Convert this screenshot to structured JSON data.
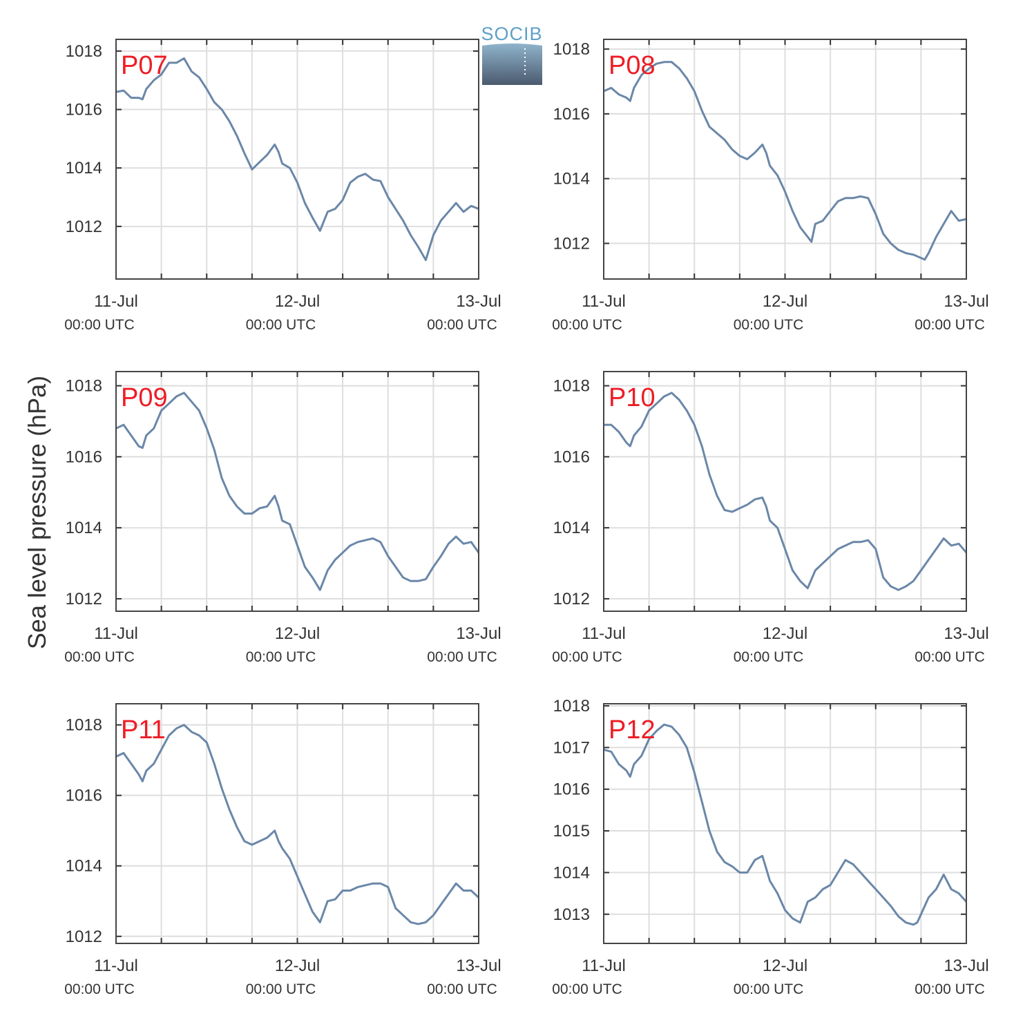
{
  "figure": {
    "ylabel": "Sea level pressure (hPa)",
    "logo_text": "SOCIB",
    "x_tick_labels": [
      {
        "date": "11-Jul",
        "time": "00:00 UTC",
        "hour": 0
      },
      {
        "date": "12-Jul",
        "time": "00:00 UTC",
        "hour": 24
      },
      {
        "date": "13-Jul",
        "time": "00:00 UTC",
        "hour": 48
      }
    ],
    "line_color": "#6a87a8",
    "station_color": "#ee1c25"
  },
  "chart_data": [
    {
      "type": "line",
      "station": "P07",
      "xlim": [
        0,
        48
      ],
      "ylim": [
        1010.2,
        1018.4
      ],
      "yticks": [
        1012,
        1014,
        1016,
        1018
      ],
      "x": [
        0,
        1,
        2,
        3,
        3.5,
        4,
        5,
        6,
        7,
        8,
        9,
        10,
        11,
        12,
        13,
        14,
        15,
        16,
        17,
        18,
        19,
        20,
        21,
        21.5,
        22,
        23,
        24,
        25,
        26,
        27,
        28,
        29,
        30,
        31,
        32,
        33,
        34,
        35,
        36,
        37,
        38,
        39,
        40,
        41,
        42,
        43,
        44,
        45,
        46,
        47,
        48
      ],
      "y": [
        1016.6,
        1016.65,
        1016.4,
        1016.4,
        1016.35,
        1016.7,
        1017.0,
        1017.2,
        1017.6,
        1017.6,
        1017.75,
        1017.3,
        1017.1,
        1016.7,
        1016.25,
        1016.0,
        1015.6,
        1015.1,
        1014.5,
        1013.95,
        1014.2,
        1014.45,
        1014.8,
        1014.55,
        1014.15,
        1014.0,
        1013.5,
        1012.8,
        1012.3,
        1011.85,
        1012.5,
        1012.6,
        1012.9,
        1013.5,
        1013.7,
        1013.8,
        1013.6,
        1013.55,
        1013.0,
        1012.6,
        1012.2,
        1011.7,
        1011.3,
        1010.85,
        1011.7,
        1012.2,
        1012.5,
        1012.8,
        1012.5,
        1012.7,
        1012.6
      ]
    },
    {
      "type": "line",
      "station": "P08",
      "xlim": [
        0,
        48
      ],
      "ylim": [
        1010.9,
        1018.3
      ],
      "yticks": [
        1012,
        1014,
        1016,
        1018
      ],
      "x": [
        0,
        1,
        2,
        3,
        3.5,
        4,
        5,
        6,
        7,
        8,
        9,
        10,
        11,
        12,
        13,
        14,
        15,
        16,
        17,
        18,
        19,
        20,
        21,
        21.5,
        22,
        23,
        24,
        25,
        26,
        27,
        27.5,
        28,
        29,
        30,
        31,
        32,
        33,
        34,
        35,
        36,
        37,
        38,
        39,
        40,
        41,
        42,
        42.5,
        43,
        44,
        45,
        46,
        47,
        48
      ],
      "y": [
        1016.7,
        1016.8,
        1016.6,
        1016.5,
        1016.4,
        1016.8,
        1017.2,
        1017.4,
        1017.55,
        1017.6,
        1017.6,
        1017.4,
        1017.1,
        1016.7,
        1016.1,
        1015.6,
        1015.4,
        1015.2,
        1014.9,
        1014.7,
        1014.6,
        1014.8,
        1015.05,
        1014.8,
        1014.4,
        1014.1,
        1013.6,
        1013.0,
        1012.5,
        1012.2,
        1012.05,
        1012.6,
        1012.7,
        1013.0,
        1013.3,
        1013.4,
        1013.4,
        1013.45,
        1013.4,
        1012.9,
        1012.3,
        1012.0,
        1011.8,
        1011.7,
        1011.65,
        1011.55,
        1011.5,
        1011.7,
        1012.2,
        1012.6,
        1013.0,
        1012.7,
        1012.75
      ]
    },
    {
      "type": "line",
      "station": "P09",
      "xlim": [
        0,
        48
      ],
      "ylim": [
        1011.65,
        1018.4
      ],
      "yticks": [
        1012,
        1014,
        1016,
        1018
      ],
      "x": [
        0,
        1,
        2,
        3,
        3.5,
        4,
        5,
        6,
        7,
        8,
        9,
        10,
        11,
        12,
        13,
        14,
        15,
        16,
        17,
        18,
        19,
        20,
        21,
        21.5,
        22,
        23,
        24,
        25,
        26,
        27,
        28,
        29,
        30,
        31,
        32,
        33,
        34,
        35,
        36,
        37,
        38,
        39,
        40,
        41,
        42,
        43,
        44,
        45,
        46,
        47,
        48
      ],
      "y": [
        1016.8,
        1016.9,
        1016.6,
        1016.3,
        1016.25,
        1016.6,
        1016.8,
        1017.3,
        1017.5,
        1017.7,
        1017.8,
        1017.55,
        1017.3,
        1016.8,
        1016.2,
        1015.4,
        1014.9,
        1014.6,
        1014.4,
        1014.4,
        1014.55,
        1014.6,
        1014.9,
        1014.6,
        1014.2,
        1014.1,
        1013.5,
        1012.9,
        1012.6,
        1012.25,
        1012.8,
        1013.1,
        1013.3,
        1013.5,
        1013.6,
        1013.65,
        1013.7,
        1013.6,
        1013.2,
        1012.9,
        1012.6,
        1012.5,
        1012.5,
        1012.55,
        1012.9,
        1013.2,
        1013.55,
        1013.75,
        1013.55,
        1013.6,
        1013.3
      ]
    },
    {
      "type": "line",
      "station": "P10",
      "xlim": [
        0,
        48
      ],
      "ylim": [
        1011.65,
        1018.4
      ],
      "yticks": [
        1012,
        1014,
        1016,
        1018
      ],
      "x": [
        0,
        1,
        2,
        3,
        3.5,
        4,
        5,
        6,
        7,
        8,
        9,
        10,
        11,
        12,
        13,
        14,
        15,
        16,
        17,
        18,
        19,
        20,
        21,
        21.5,
        22,
        23,
        24,
        25,
        26,
        27,
        28,
        29,
        30,
        31,
        32,
        33,
        34,
        35,
        36,
        37,
        38,
        39,
        40,
        41,
        42,
        43,
        44,
        45,
        46,
        47,
        48
      ],
      "y": [
        1016.9,
        1016.9,
        1016.7,
        1016.4,
        1016.3,
        1016.6,
        1016.85,
        1017.3,
        1017.5,
        1017.7,
        1017.8,
        1017.6,
        1017.3,
        1016.9,
        1016.3,
        1015.5,
        1014.9,
        1014.5,
        1014.45,
        1014.55,
        1014.65,
        1014.8,
        1014.85,
        1014.6,
        1014.2,
        1014.0,
        1013.4,
        1012.8,
        1012.5,
        1012.3,
        1012.8,
        1013.0,
        1013.2,
        1013.4,
        1013.5,
        1013.6,
        1013.6,
        1013.65,
        1013.4,
        1012.6,
        1012.35,
        1012.25,
        1012.35,
        1012.5,
        1012.8,
        1013.1,
        1013.4,
        1013.7,
        1013.5,
        1013.55,
        1013.3
      ]
    },
    {
      "type": "line",
      "station": "P11",
      "xlim": [
        0,
        48
      ],
      "ylim": [
        1011.8,
        1018.6
      ],
      "yticks": [
        1012,
        1014,
        1016,
        1018
      ],
      "x": [
        0,
        1,
        2,
        3,
        3.5,
        4,
        5,
        6,
        7,
        8,
        9,
        10,
        11,
        12,
        13,
        14,
        15,
        16,
        17,
        18,
        19,
        20,
        21,
        21.5,
        22,
        23,
        24,
        25,
        26,
        27,
        28,
        29,
        30,
        31,
        32,
        33,
        34,
        35,
        36,
        37,
        38,
        39,
        40,
        41,
        42,
        43,
        44,
        45,
        46,
        47,
        48
      ],
      "y": [
        1017.1,
        1017.2,
        1016.9,
        1016.6,
        1016.4,
        1016.7,
        1016.9,
        1017.3,
        1017.7,
        1017.9,
        1018.0,
        1017.8,
        1017.7,
        1017.5,
        1016.9,
        1016.2,
        1015.6,
        1015.1,
        1014.7,
        1014.6,
        1014.7,
        1014.8,
        1015.0,
        1014.7,
        1014.5,
        1014.2,
        1013.7,
        1013.2,
        1012.7,
        1012.4,
        1013.0,
        1013.05,
        1013.3,
        1013.3,
        1013.4,
        1013.45,
        1013.5,
        1013.5,
        1013.4,
        1012.8,
        1012.6,
        1012.4,
        1012.35,
        1012.4,
        1012.6,
        1012.9,
        1013.2,
        1013.5,
        1013.3,
        1013.3,
        1013.1
      ]
    },
    {
      "type": "line",
      "station": "P12",
      "xlim": [
        0,
        48
      ],
      "ylim": [
        1012.3,
        1018.05
      ],
      "yticks": [
        1013,
        1014,
        1015,
        1016,
        1017,
        1018
      ],
      "x": [
        0,
        1,
        2,
        3,
        3.5,
        4,
        5,
        6,
        7,
        8,
        9,
        10,
        11,
        12,
        13,
        14,
        15,
        16,
        17,
        18,
        19,
        20,
        21,
        21.5,
        22,
        23,
        24,
        25,
        26,
        27,
        28,
        29,
        30,
        31,
        32,
        33,
        34,
        35,
        36,
        37,
        38,
        39,
        40,
        41,
        41.5,
        42,
        43,
        44,
        45,
        46,
        47,
        48
      ],
      "y": [
        1016.95,
        1016.9,
        1016.6,
        1016.45,
        1016.3,
        1016.6,
        1016.8,
        1017.2,
        1017.4,
        1017.55,
        1017.5,
        1017.3,
        1017.0,
        1016.4,
        1015.7,
        1015.0,
        1014.5,
        1014.25,
        1014.15,
        1014.0,
        1014.0,
        1014.3,
        1014.4,
        1014.1,
        1013.8,
        1013.5,
        1013.1,
        1012.9,
        1012.8,
        1013.3,
        1013.4,
        1013.6,
        1013.7,
        1014.0,
        1014.3,
        1014.2,
        1014.0,
        1013.8,
        1013.6,
        1013.4,
        1013.2,
        1012.95,
        1012.8,
        1012.75,
        1012.8,
        1013.0,
        1013.4,
        1013.6,
        1013.95,
        1013.6,
        1013.5,
        1013.3
      ]
    }
  ]
}
